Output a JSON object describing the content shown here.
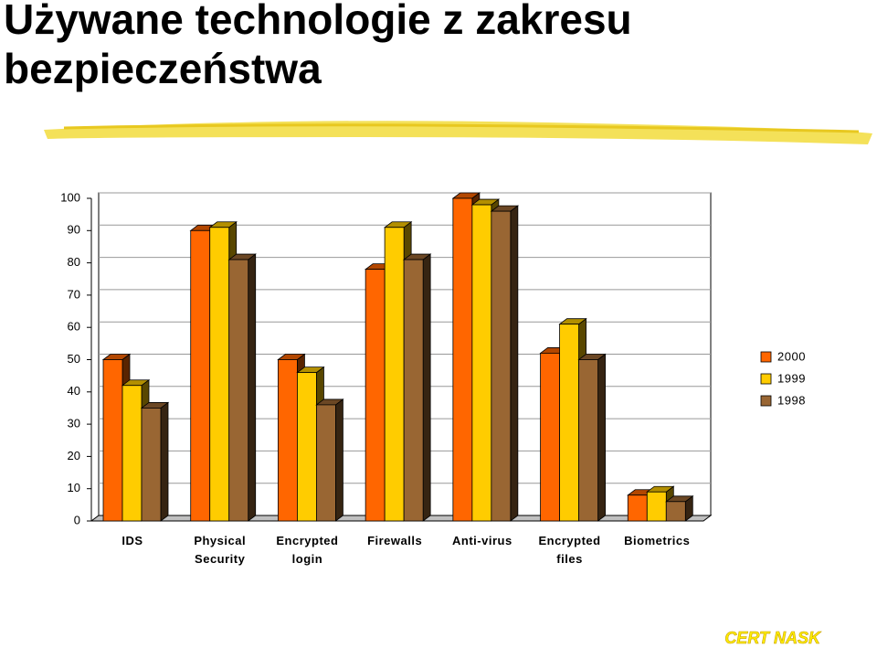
{
  "title": "Używane technologie z zakresu bezpieczeństwa",
  "footer": "CERT NASK",
  "chart_data": {
    "type": "bar3d",
    "categories": [
      "IDS",
      "Physical\nSecurity",
      "Encrypted\nlogin",
      "Firewalls",
      "Anti-virus",
      "Encrypted\nfiles",
      "Biometrics"
    ],
    "series": [
      {
        "name": "2000",
        "color": "#ff6600",
        "values": [
          50,
          90,
          50,
          78,
          100,
          52,
          8
        ]
      },
      {
        "name": "1999",
        "color": "#ffcc00",
        "values": [
          42,
          91,
          46,
          91,
          98,
          61,
          9
        ]
      },
      {
        "name": "1998",
        "color": "#996633",
        "values": [
          35,
          81,
          36,
          81,
          96,
          50,
          6
        ]
      }
    ],
    "ylim": [
      0,
      100
    ],
    "yticks": [
      0,
      10,
      20,
      30,
      40,
      50,
      60,
      70,
      80,
      90,
      100
    ],
    "grid": true,
    "legend": "right"
  }
}
